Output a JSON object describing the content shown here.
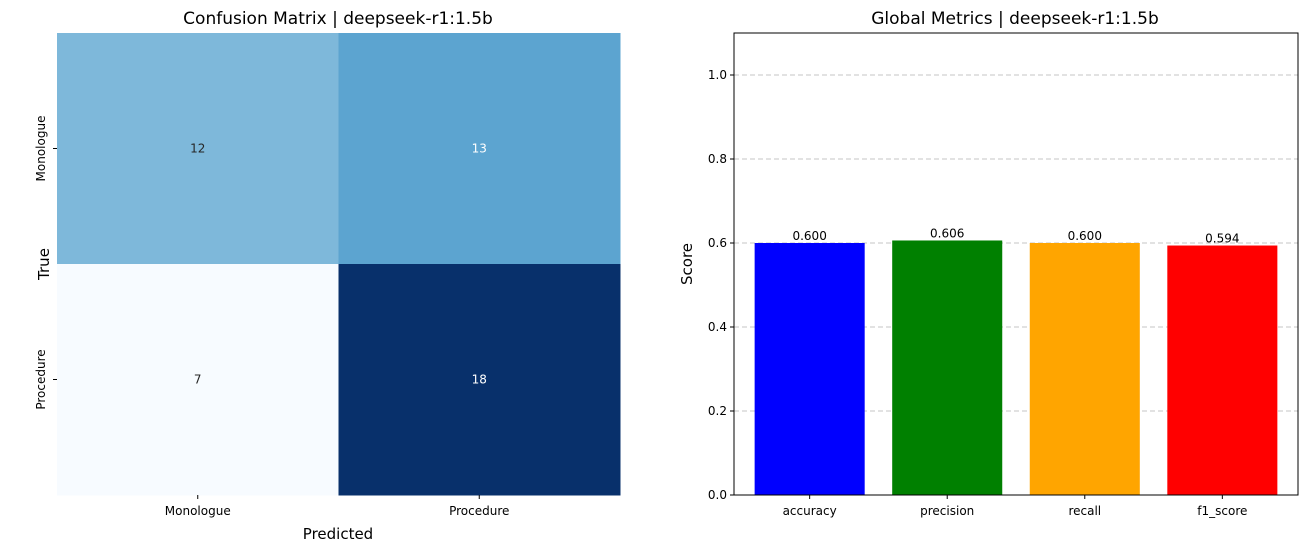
{
  "chart_data": [
    {
      "type": "heatmap",
      "title": "Confusion Matrix | deepseek-r1:1.5b",
      "xlabel": "Predicted",
      "ylabel": "True",
      "x_categories": [
        "Monologue",
        "Procedure"
      ],
      "y_categories": [
        "Monologue",
        "Procedure"
      ],
      "values": [
        [
          12,
          13
        ],
        [
          7,
          18
        ]
      ],
      "colormap": "Blues",
      "colorbar": false
    },
    {
      "type": "bar",
      "title": "Global Metrics | deepseek-r1:1.5b",
      "xlabel": "",
      "ylabel": "Score",
      "categories": [
        "accuracy",
        "precision",
        "recall",
        "f1_score"
      ],
      "values": [
        0.6,
        0.606,
        0.6,
        0.594
      ],
      "value_labels": [
        "0.600",
        "0.606",
        "0.600",
        "0.594"
      ],
      "colors": [
        "#0000ff",
        "#008000",
        "#ffa500",
        "#ff0000"
      ],
      "ylim": [
        0,
        1.1
      ],
      "yticks": [
        "0.0",
        "0.2",
        "0.4",
        "0.6",
        "0.8",
        "1.0"
      ],
      "grid": "y-dashed"
    }
  ]
}
